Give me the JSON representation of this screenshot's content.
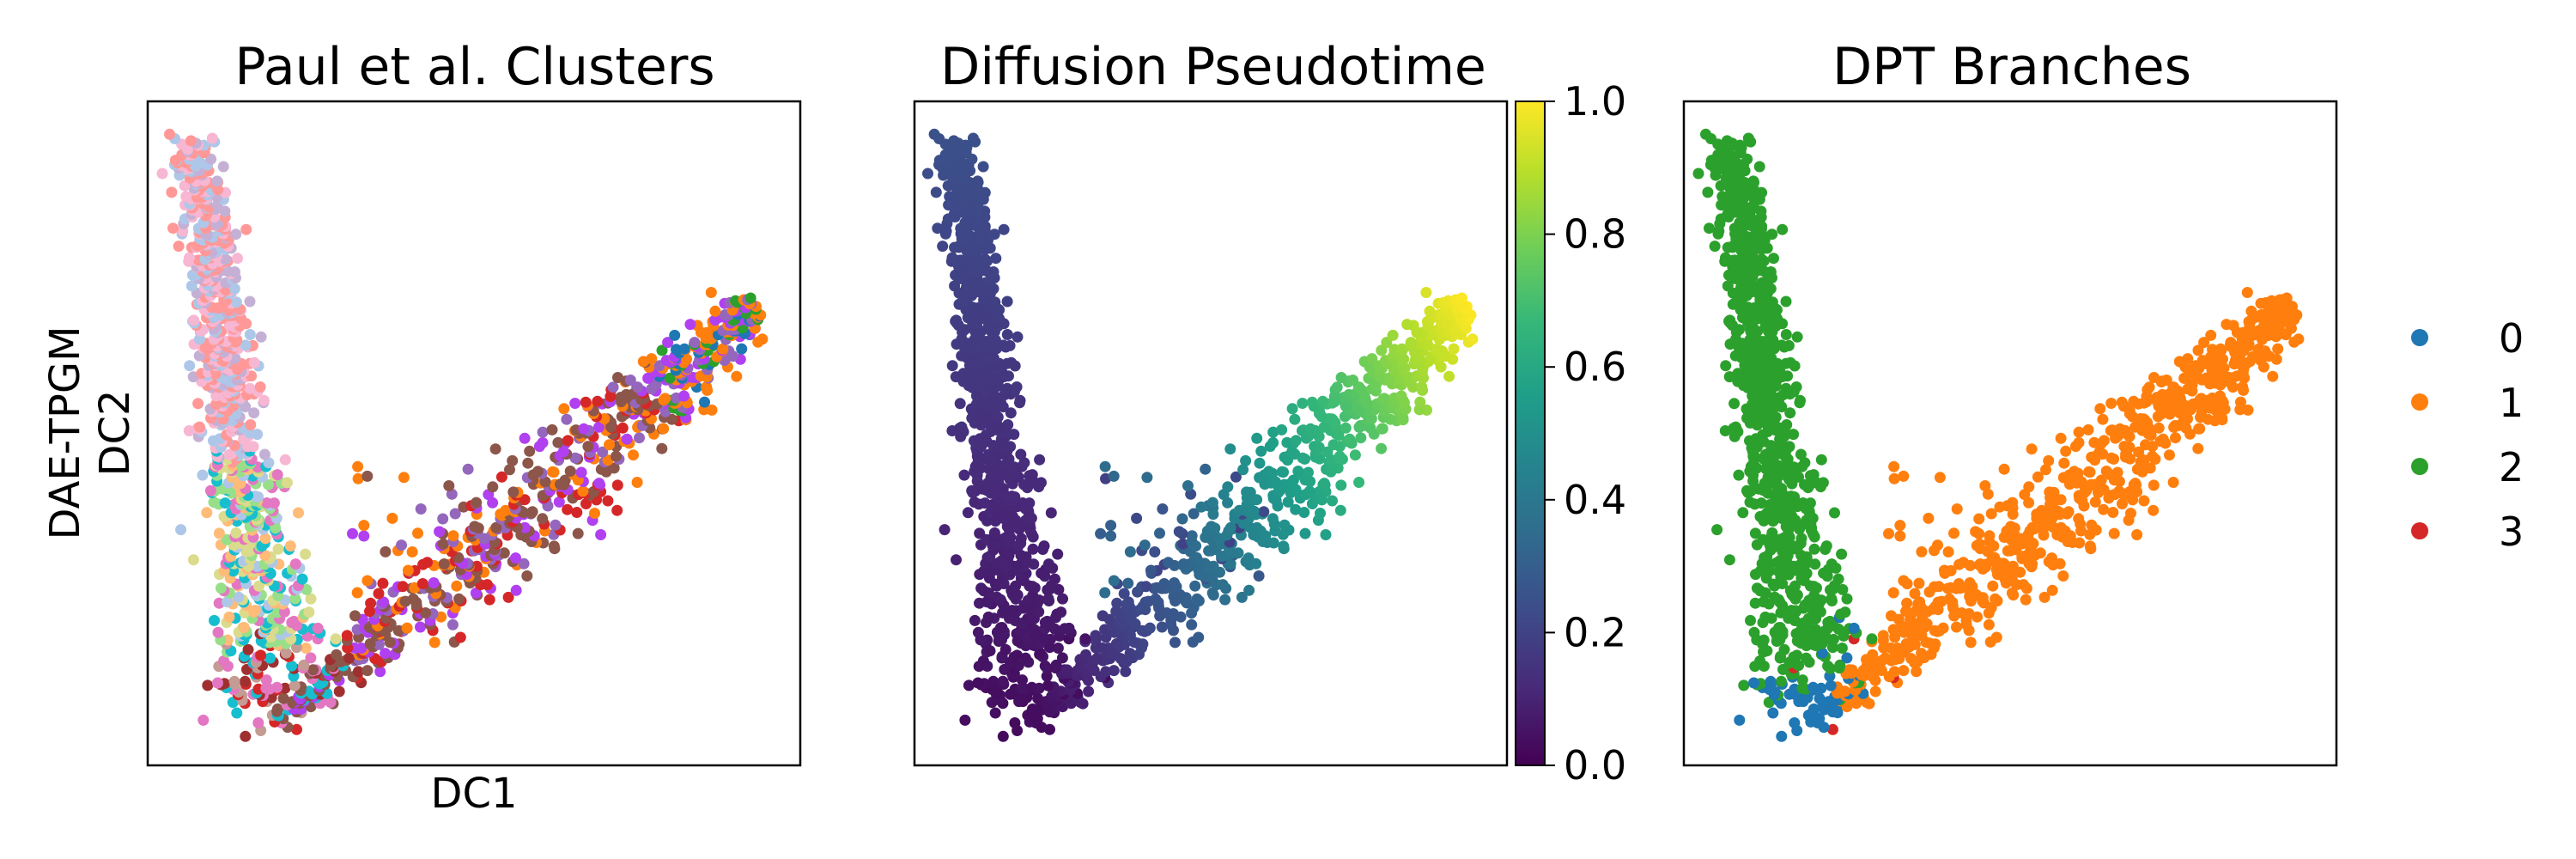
{
  "chart_data": [
    {
      "type": "scatter",
      "title": "Paul et al. Clusters",
      "xlabel": "DC1",
      "ylabel_lines": [
        "DAE-TPGM",
        "DC2"
      ],
      "ticks": "none",
      "color_by": "categorical clusters",
      "trajectory": {
        "vertex": [
          0.19,
          0.05
        ],
        "upper_arm_end": [
          0.05,
          0.96
        ],
        "right_arm_end": [
          0.95,
          0.7
        ]
      },
      "palette": [
        "#1f77b4",
        "#ff7f0e",
        "#2ca02c",
        "#d62728",
        "#9467bd",
        "#8c564b",
        "#e377c2",
        "#7f7f7f",
        "#bcbd22",
        "#17becf",
        "#aec7e8",
        "#ffbb78",
        "#98df8a",
        "#ff9896",
        "#c5b0d5",
        "#c49c94",
        "#f7b6d2",
        "#dbdb8d",
        "#9edae5",
        "#b040f0",
        "#a03030"
      ]
    },
    {
      "type": "scatter",
      "title": "Diffusion Pseudotime",
      "ticks": "none",
      "color_by": "pseudotime",
      "colormap": "viridis",
      "colorbar": {
        "min": 0.0,
        "max": 1.0,
        "ticks": [
          "0.0",
          "0.2",
          "0.4",
          "0.6",
          "0.8",
          "1.0"
        ]
      },
      "colors": [
        "#440154",
        "#482878",
        "#3e4989",
        "#31688e",
        "#26828e",
        "#1f9e89",
        "#35b779",
        "#6ece58",
        "#b5de2b",
        "#fde725"
      ]
    },
    {
      "type": "scatter",
      "title": "DPT Branches",
      "ticks": "none",
      "color_by": "branch",
      "legend": {
        "position": "right",
        "entries": [
          {
            "label": "0",
            "color": "#1f77b4"
          },
          {
            "label": "1",
            "color": "#ff7f0e"
          },
          {
            "label": "2",
            "color": "#2ca02c"
          },
          {
            "label": "3",
            "color": "#d62728"
          }
        ]
      }
    }
  ]
}
